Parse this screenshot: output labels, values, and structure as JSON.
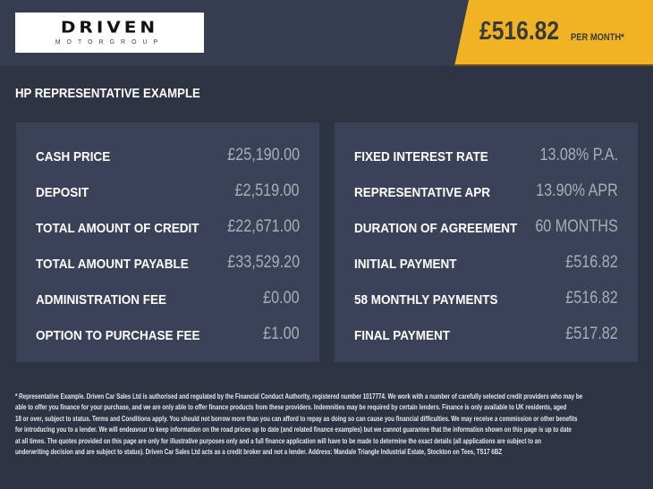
{
  "logo": {
    "main": "DRIVEN",
    "sub": "MOTORGROUP"
  },
  "badge": {
    "price": "£516.82",
    "per_month": "PER MONTH*",
    "color": "#f0b323"
  },
  "title": "HP REPRESENTATIVE EXAMPLE",
  "left": [
    {
      "label": "CASH PRICE",
      "value": "£25,190.00"
    },
    {
      "label": "DEPOSIT",
      "value": "£2,519.00"
    },
    {
      "label": "TOTAL AMOUNT OF CREDIT",
      "value": "£22,671.00"
    },
    {
      "label": "TOTAL AMOUNT PAYABLE",
      "value": "£33,529.20"
    },
    {
      "label": "ADMINISTRATION FEE",
      "value": "£0.00"
    },
    {
      "label": "OPTION TO PURCHASE FEE",
      "value": "£1.00"
    }
  ],
  "right": [
    {
      "label": "FIXED INTEREST RATE",
      "value": "13.08% P.A."
    },
    {
      "label": "REPRESENTATIVE APR",
      "value": "13.90% APR"
    },
    {
      "label": "DURATION OF AGREEMENT",
      "value": "60 MONTHS"
    },
    {
      "label": "INITIAL PAYMENT",
      "value": "£516.82"
    },
    {
      "label": "58 MONTHLY PAYMENTS",
      "value": "£516.82"
    },
    {
      "label": "FINAL PAYMENT",
      "value": "£517.82"
    }
  ],
  "footer": [
    "* Representative Example. Driven Car Sales Ltd is authorised and regulated by the Financial Conduct Authority, registered number 1017774. We work with a number of carefully selected credit providers who may be",
    "able to offer you finance for your purchase, and we are only able to offer finance products from these providers. Indemnities may be required by certain lenders. Finance is only available to UK residents, aged",
    "18 or over, subject to status. Terms and Conditions apply. You should not borrow more than you can afford to repay as doing so can cause you financial difficulties. We may receive a commission or other benefits",
    "for introducing you to a lender. We will endeavour to keep information on the road prices up to date (and related finance examples) but we cannot guarantee that the information shown on this page is up to date",
    "at all times. The quotes provided on this page are only for illustrative purposes only and a full finance application will have to be made to determine the exact details (all applications are subject to an",
    "underwriting decision and are subject to status). Driven Car Sales Ltd acts as a credit broker and not a lender. Address: Mandale Triangle Industrial Estate, Stockton on Tees, TS17 6BZ"
  ]
}
